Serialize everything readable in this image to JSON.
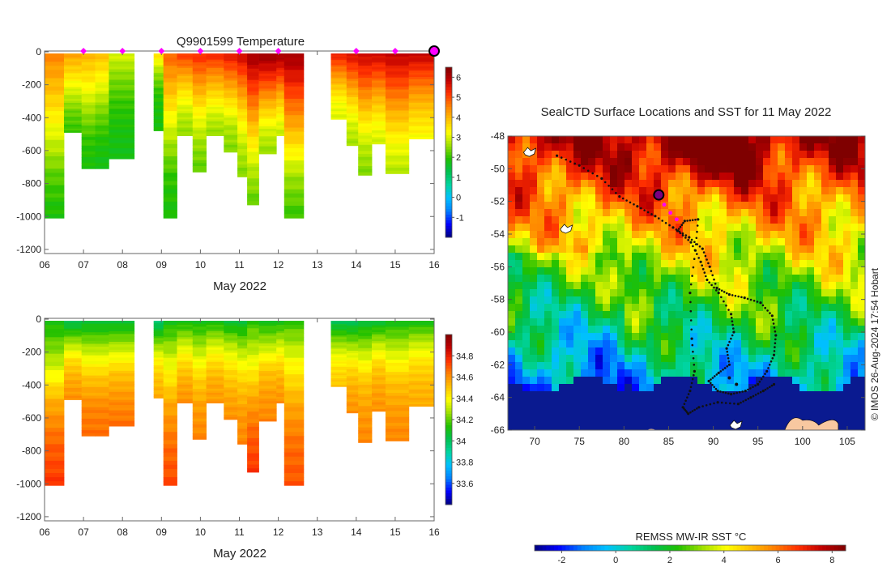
{
  "colors": {
    "jet": [
      "#00007f",
      "#0000ff",
      "#007fff",
      "#00c0ff",
      "#00d4a0",
      "#00c050",
      "#20c000",
      "#9ce000",
      "#ffff00",
      "#ffc000",
      "#ff8000",
      "#ff3000",
      "#c00000",
      "#7f0000"
    ],
    "sst_cold": "#0a1a90",
    "land": "#f8c8a0",
    "track": "#111111",
    "seal_marker": "#7a0080",
    "recent_track": "#ff00ff",
    "gap_white": "#ffffff"
  },
  "chart_data": [
    {
      "id": "temperature",
      "type": "heatmap",
      "title": "Q9901599  Temperature",
      "xlabel": "May 2022",
      "ylabel": "",
      "xlim": [
        6,
        16
      ],
      "ylim": [
        -1230,
        0
      ],
      "xticks": [
        "06",
        "07",
        "08",
        "09",
        "10",
        "11",
        "12",
        "13",
        "14",
        "15",
        "16"
      ],
      "yticks": [
        "0",
        "-200",
        "-400",
        "-600",
        "-800",
        "-1000",
        "-1200"
      ],
      "colorbar": {
        "min": -2,
        "max": 6.5,
        "ticks": [
          "-1",
          "0",
          "1",
          "2",
          "3",
          "4",
          "5",
          "6"
        ]
      },
      "surface_markers": [
        7.0,
        8.0,
        9.0,
        10.0,
        11.0,
        12.0,
        14.0,
        15.0
      ],
      "current_position_marker": 16.0,
      "profiles": [
        {
          "x0": 6.0,
          "x1": 6.5,
          "depth": 1000,
          "profile": [
            4.5,
            3.8,
            3.0,
            2.2,
            1.8
          ]
        },
        {
          "x0": 6.5,
          "x1": 6.95,
          "depth": 480,
          "profile": [
            4.2,
            3.6,
            2.9,
            2.3,
            2.0
          ]
        },
        {
          "x0": 6.95,
          "x1": 7.3,
          "depth": 700,
          "profile": [
            4.0,
            3.4,
            2.6,
            2.0,
            1.8
          ]
        },
        {
          "x0": 7.3,
          "x1": 7.65,
          "depth": 700,
          "profile": [
            3.9,
            3.2,
            2.4,
            1.9,
            1.7
          ]
        },
        {
          "x0": 7.65,
          "x1": 8.3,
          "depth": 640,
          "profile": [
            3.0,
            2.4,
            2.0,
            1.8,
            1.7
          ]
        },
        {
          "x0": 8.8,
          "x1": 9.05,
          "depth": 470,
          "profile": [
            3.6,
            2.6,
            2.0,
            1.8,
            1.8
          ]
        },
        {
          "x0": 9.05,
          "x1": 9.4,
          "depth": 1000,
          "profile": [
            4.8,
            3.8,
            2.8,
            2.0,
            1.8
          ]
        },
        {
          "x0": 9.4,
          "x1": 9.8,
          "depth": 500,
          "profile": [
            5.2,
            4.2,
            3.4,
            2.8,
            2.5
          ]
        },
        {
          "x0": 9.8,
          "x1": 10.15,
          "depth": 720,
          "profile": [
            5.3,
            4.3,
            3.3,
            2.6,
            2.2
          ]
        },
        {
          "x0": 10.15,
          "x1": 10.6,
          "depth": 500,
          "profile": [
            5.4,
            4.4,
            3.6,
            2.9,
            2.5
          ]
        },
        {
          "x0": 10.6,
          "x1": 10.95,
          "depth": 600,
          "profile": [
            5.6,
            4.5,
            3.5,
            2.7,
            2.4
          ]
        },
        {
          "x0": 10.95,
          "x1": 11.2,
          "depth": 750,
          "profile": [
            5.8,
            4.6,
            3.5,
            2.8,
            2.4
          ]
        },
        {
          "x0": 11.2,
          "x1": 11.5,
          "depth": 920,
          "profile": [
            6.2,
            5.0,
            3.8,
            2.8,
            2.2
          ]
        },
        {
          "x0": 11.5,
          "x1": 11.95,
          "depth": 610,
          "profile": [
            6.3,
            5.2,
            4.0,
            3.0,
            2.5
          ]
        },
        {
          "x0": 11.95,
          "x1": 12.15,
          "depth": 500,
          "profile": [
            6.2,
            5.2,
            4.1,
            3.3,
            2.8
          ]
        },
        {
          "x0": 12.15,
          "x1": 12.65,
          "depth": 1000,
          "profile": [
            6.2,
            5.0,
            3.8,
            2.6,
            2.0
          ]
        },
        {
          "x0": 13.35,
          "x1": 13.75,
          "depth": 400,
          "profile": [
            5.5,
            4.6,
            3.8,
            3.2,
            3.0
          ]
        },
        {
          "x0": 13.75,
          "x1": 14.05,
          "depth": 560,
          "profile": [
            5.7,
            4.7,
            3.7,
            3.0,
            2.6
          ]
        },
        {
          "x0": 14.05,
          "x1": 14.4,
          "depth": 740,
          "profile": [
            5.8,
            4.8,
            3.7,
            2.8,
            2.4
          ]
        },
        {
          "x0": 14.4,
          "x1": 14.75,
          "depth": 550,
          "profile": [
            5.8,
            4.9,
            4.0,
            3.3,
            2.9
          ]
        },
        {
          "x0": 14.75,
          "x1": 15.35,
          "depth": 730,
          "profile": [
            5.9,
            5.0,
            4.0,
            3.2,
            2.7
          ]
        },
        {
          "x0": 15.35,
          "x1": 16.0,
          "depth": 520,
          "profile": [
            5.9,
            5.0,
            4.2,
            3.6,
            3.2
          ]
        }
      ]
    },
    {
      "id": "salinity",
      "type": "heatmap",
      "title": "",
      "xlabel": "May 2022",
      "ylabel": "",
      "xlim": [
        6,
        16
      ],
      "ylim": [
        -1230,
        0
      ],
      "xticks": [
        "06",
        "07",
        "08",
        "09",
        "10",
        "11",
        "12",
        "13",
        "14",
        "15",
        "16"
      ],
      "yticks": [
        "0",
        "-200",
        "-400",
        "-600",
        "-800",
        "-1000",
        "-1200"
      ],
      "colorbar": {
        "min": 33.4,
        "max": 35.0,
        "ticks": [
          "33.6",
          "33.8",
          "34",
          "34.2",
          "34.4",
          "34.6",
          "34.8"
        ]
      },
      "profiles": [
        {
          "x0": 6.0,
          "x1": 6.5,
          "depth": 1000,
          "profile": [
            34.1,
            34.3,
            34.55,
            34.68,
            34.75
          ]
        },
        {
          "x0": 6.5,
          "x1": 6.95,
          "depth": 480,
          "profile": [
            34.0,
            34.25,
            34.45,
            34.55,
            34.6
          ]
        },
        {
          "x0": 6.95,
          "x1": 7.3,
          "depth": 700,
          "profile": [
            34.05,
            34.3,
            34.5,
            34.62,
            34.66
          ]
        },
        {
          "x0": 7.3,
          "x1": 7.65,
          "depth": 700,
          "profile": [
            34.05,
            34.3,
            34.5,
            34.62,
            34.66
          ]
        },
        {
          "x0": 7.65,
          "x1": 8.3,
          "depth": 640,
          "profile": [
            34.05,
            34.3,
            34.5,
            34.6,
            34.66
          ]
        },
        {
          "x0": 8.8,
          "x1": 9.05,
          "depth": 470,
          "profile": [
            33.95,
            34.2,
            34.4,
            34.5,
            34.55
          ]
        },
        {
          "x0": 9.05,
          "x1": 9.4,
          "depth": 1000,
          "profile": [
            34.1,
            34.35,
            34.55,
            34.66,
            34.72
          ]
        },
        {
          "x0": 9.4,
          "x1": 9.8,
          "depth": 500,
          "profile": [
            34.1,
            34.3,
            34.45,
            34.55,
            34.6
          ]
        },
        {
          "x0": 9.8,
          "x1": 10.15,
          "depth": 720,
          "profile": [
            34.1,
            34.3,
            34.48,
            34.58,
            34.62
          ]
        },
        {
          "x0": 10.15,
          "x1": 10.6,
          "depth": 500,
          "profile": [
            34.1,
            34.3,
            34.45,
            34.55,
            34.58
          ]
        },
        {
          "x0": 10.6,
          "x1": 10.95,
          "depth": 600,
          "profile": [
            34.05,
            34.3,
            34.45,
            34.55,
            34.6
          ]
        },
        {
          "x0": 10.95,
          "x1": 11.2,
          "depth": 750,
          "profile": [
            34.05,
            34.3,
            34.48,
            34.58,
            34.62
          ]
        },
        {
          "x0": 11.2,
          "x1": 11.5,
          "depth": 920,
          "profile": [
            34.15,
            34.35,
            34.55,
            34.68,
            34.75
          ]
        },
        {
          "x0": 11.5,
          "x1": 11.95,
          "depth": 610,
          "profile": [
            34.1,
            34.3,
            34.5,
            34.58,
            34.62
          ]
        },
        {
          "x0": 11.95,
          "x1": 12.15,
          "depth": 500,
          "profile": [
            34.1,
            34.3,
            34.45,
            34.55,
            34.6
          ]
        },
        {
          "x0": 12.15,
          "x1": 12.65,
          "depth": 1000,
          "profile": [
            34.15,
            34.38,
            34.55,
            34.66,
            34.7
          ]
        },
        {
          "x0": 13.35,
          "x1": 13.75,
          "depth": 400,
          "profile": [
            34.0,
            34.2,
            34.35,
            34.45,
            34.5
          ]
        },
        {
          "x0": 13.75,
          "x1": 14.05,
          "depth": 560,
          "profile": [
            34.0,
            34.25,
            34.45,
            34.55,
            34.6
          ]
        },
        {
          "x0": 14.05,
          "x1": 14.4,
          "depth": 740,
          "profile": [
            34.05,
            34.3,
            34.5,
            34.58,
            34.62
          ]
        },
        {
          "x0": 14.4,
          "x1": 14.75,
          "depth": 550,
          "profile": [
            34.05,
            34.3,
            34.48,
            34.56,
            34.6
          ]
        },
        {
          "x0": 14.75,
          "x1": 15.35,
          "depth": 730,
          "profile": [
            34.1,
            34.32,
            34.5,
            34.58,
            34.62
          ]
        },
        {
          "x0": 15.35,
          "x1": 16.0,
          "depth": 520,
          "profile": [
            34.1,
            34.3,
            34.45,
            34.52,
            34.55
          ]
        }
      ]
    },
    {
      "id": "sst-map",
      "type": "heatmap",
      "title": "SealCTD Surface Locations and SST for 11 May 2022",
      "xlabel": "",
      "ylabel": "",
      "xlim": [
        67,
        107
      ],
      "ylim": [
        -66,
        -48
      ],
      "xticks": [
        "70",
        "75",
        "80",
        "85",
        "90",
        "95",
        "100",
        "105"
      ],
      "yticks": [
        "-48",
        "-50",
        "-52",
        "-54",
        "-56",
        "-58",
        "-60",
        "-62",
        "-64",
        "-66"
      ],
      "colorbar": {
        "label": "REMSS MW-IR SST °C",
        "min": -3,
        "max": 8.5,
        "ticks": [
          "-2",
          "0",
          "2",
          "4",
          "6",
          "8"
        ]
      },
      "credit": "© IMOS 26-Aug-2024 17:54 Hobart",
      "seal_position": {
        "lon": 83.9,
        "lat": -51.6
      },
      "recent_track": [
        [
          83.9,
          -51.6
        ],
        [
          84.5,
          -52.2
        ],
        [
          85.2,
          -52.7
        ],
        [
          85.9,
          -53.1
        ]
      ],
      "track": [
        [
          72.5,
          -49.2
        ],
        [
          75.0,
          -49.8
        ],
        [
          77.5,
          -50.6
        ],
        [
          79.5,
          -51.7
        ],
        [
          81.5,
          -52.3
        ],
        [
          83.5,
          -52.9
        ],
        [
          85.5,
          -53.6
        ],
        [
          87.3,
          -54.2
        ],
        [
          88.8,
          -54.9
        ],
        [
          89.6,
          -56.0
        ],
        [
          90.4,
          -57.3
        ],
        [
          91.8,
          -57.7
        ],
        [
          93.5,
          -57.9
        ],
        [
          95.3,
          -58.2
        ],
        [
          96.6,
          -59.0
        ],
        [
          97.0,
          -60.2
        ],
        [
          96.8,
          -61.4
        ],
        [
          96.0,
          -62.4
        ],
        [
          95.0,
          -63.2
        ],
        [
          93.6,
          -63.6
        ],
        [
          92.0,
          -63.8
        ],
        [
          90.5,
          -63.6
        ],
        [
          89.5,
          -63.0
        ],
        [
          90.6,
          -62.5
        ],
        [
          91.8,
          -62.0
        ],
        [
          91.5,
          -61.0
        ],
        [
          92.3,
          -60.0
        ],
        [
          92.0,
          -58.9
        ],
        [
          90.6,
          -57.6
        ],
        [
          89.3,
          -56.8
        ],
        [
          88.6,
          -55.7
        ],
        [
          87.5,
          -54.5
        ],
        [
          86.0,
          -53.8
        ],
        [
          86.8,
          -53.2
        ],
        [
          88.3,
          -53.1
        ],
        [
          88.0,
          -55.0
        ],
        [
          87.4,
          -57.6
        ],
        [
          87.6,
          -60.4
        ],
        [
          87.9,
          -62.4
        ],
        [
          87.4,
          -63.6
        ],
        [
          86.6,
          -64.6
        ],
        [
          87.2,
          -65.0
        ],
        [
          88.4,
          -64.6
        ],
        [
          90.5,
          -64.3
        ],
        [
          92.8,
          -64.4
        ],
        [
          94.2,
          -64.0
        ],
        [
          95.6,
          -63.6
        ],
        [
          96.8,
          -63.2
        ]
      ],
      "isolated_points": [
        [
          91.8,
          -62.8
        ],
        [
          92.6,
          -63.2
        ]
      ],
      "islands": [
        [
          69.4,
          -49.0
        ],
        [
          73.5,
          -53.7
        ],
        [
          92.5,
          -65.7
        ]
      ]
    }
  ]
}
